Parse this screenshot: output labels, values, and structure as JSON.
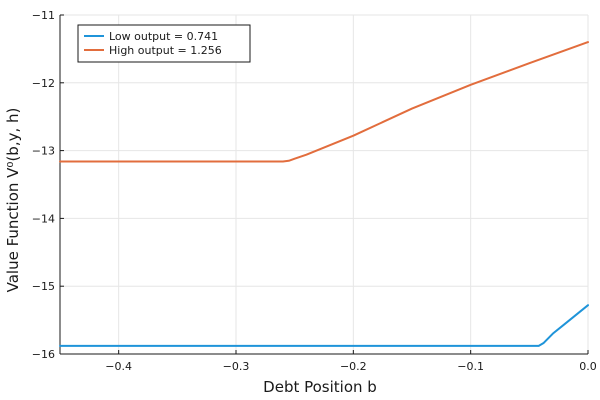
{
  "chart_data": {
    "type": "line",
    "xlabel": "Debt Position b",
    "ylabel": "Value Function V⁰(b,y, h)",
    "xlim": [
      -0.45,
      0.0
    ],
    "ylim": [
      -16,
      -11
    ],
    "xticks": [
      -0.4,
      -0.3,
      -0.2,
      -0.1,
      0.0
    ],
    "xtick_labels": [
      "−0.4",
      "−0.3",
      "−0.2",
      "−0.1",
      "0.0"
    ],
    "yticks": [
      -16,
      -15,
      -14,
      -13,
      -12,
      -11
    ],
    "ytick_labels": [
      "−16",
      "−15",
      "−14",
      "−13",
      "−12",
      "−11"
    ],
    "grid": true,
    "legend_position": "top-left",
    "series": [
      {
        "name": "Low output = 0.741",
        "color": "#1f94d9",
        "x": [
          -0.45,
          -0.3,
          -0.2,
          -0.1,
          -0.05,
          -0.042,
          -0.038,
          -0.03,
          -0.02,
          -0.01,
          0.0
        ],
        "y": [
          -15.88,
          -15.88,
          -15.88,
          -15.88,
          -15.88,
          -15.88,
          -15.84,
          -15.7,
          -15.56,
          -15.42,
          -15.28
        ]
      },
      {
        "name": "High output = 1.256",
        "color": "#e26d3d",
        "x": [
          -0.45,
          -0.35,
          -0.26,
          -0.255,
          -0.25,
          -0.24,
          -0.2,
          -0.15,
          -0.1,
          -0.05,
          0.0
        ],
        "y": [
          -13.16,
          -13.16,
          -13.16,
          -13.15,
          -13.12,
          -13.06,
          -12.78,
          -12.38,
          -12.03,
          -11.71,
          -11.4
        ]
      }
    ]
  }
}
